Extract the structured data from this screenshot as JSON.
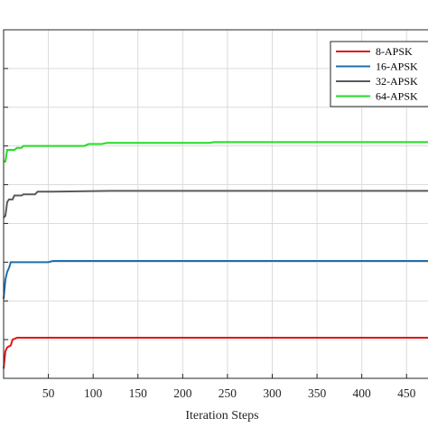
{
  "chart_data": {
    "type": "line",
    "title": "",
    "xlabel": "Iteration Steps",
    "ylabel": "",
    "xlim": [
      0,
      480
    ],
    "ylim": [
      0,
      9
    ],
    "xticks": [
      50,
      100,
      150,
      200,
      250,
      300,
      350,
      400,
      450
    ],
    "yticks": [
      1,
      2,
      3,
      4,
      5,
      6,
      7,
      8
    ],
    "grid": true,
    "legend_position": "top-right",
    "series": [
      {
        "name": "8-APSK",
        "color": "#e01818",
        "points": [
          [
            0,
            0.25
          ],
          [
            2,
            0.7
          ],
          [
            4,
            0.8
          ],
          [
            8,
            0.85
          ],
          [
            10,
            1.0
          ],
          [
            15,
            1.05
          ],
          [
            480,
            1.05
          ]
        ]
      },
      {
        "name": "16-APSK",
        "color": "#1f6fad",
        "points": [
          [
            0,
            2.05
          ],
          [
            2,
            2.55
          ],
          [
            4,
            2.75
          ],
          [
            6,
            2.85
          ],
          [
            8,
            3.0
          ],
          [
            50,
            3.0
          ],
          [
            55,
            3.03
          ],
          [
            480,
            3.03
          ]
        ]
      },
      {
        "name": "32-APSK",
        "color": "#5a5a5a",
        "points": [
          [
            0,
            4.15
          ],
          [
            2,
            4.2
          ],
          [
            4,
            4.55
          ],
          [
            6,
            4.62
          ],
          [
            10,
            4.62
          ],
          [
            12,
            4.72
          ],
          [
            20,
            4.72
          ],
          [
            22,
            4.75
          ],
          [
            35,
            4.75
          ],
          [
            38,
            4.82
          ],
          [
            55,
            4.82
          ],
          [
            120,
            4.84
          ],
          [
            480,
            4.84
          ]
        ]
      },
      {
        "name": "64-APSK",
        "color": "#22dd22",
        "points": [
          [
            0,
            5.6
          ],
          [
            2,
            5.6
          ],
          [
            4,
            5.9
          ],
          [
            12,
            5.9
          ],
          [
            15,
            5.95
          ],
          [
            20,
            5.95
          ],
          [
            22,
            6.0
          ],
          [
            90,
            6.0
          ],
          [
            95,
            6.05
          ],
          [
            110,
            6.05
          ],
          [
            115,
            6.08
          ],
          [
            230,
            6.08
          ],
          [
            235,
            6.1
          ],
          [
            480,
            6.1
          ]
        ]
      }
    ]
  }
}
